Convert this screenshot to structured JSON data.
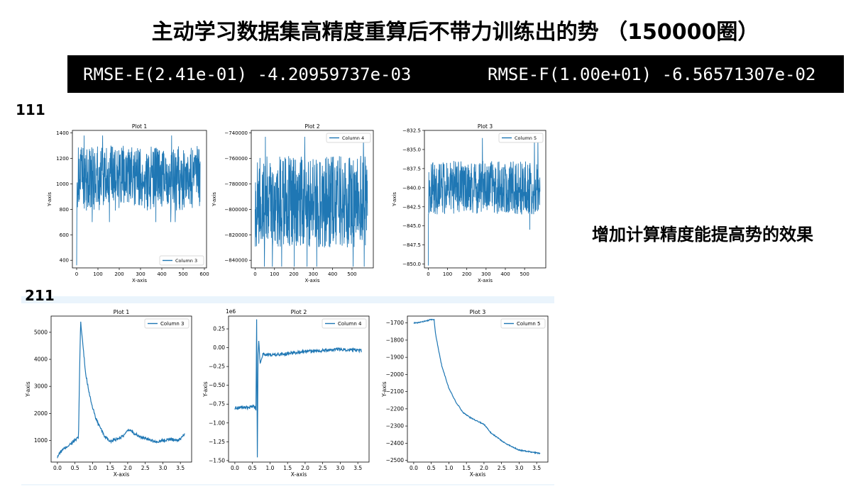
{
  "page": {
    "title": "主动学习数据集高精度重算后不带力训练出的势 （150000圈）",
    "rmse_e": "RMSE-E(2.41e-01) -4.20959737e-03",
    "rmse_f": "RMSE-F(1.00e+01) -6.56571307e-02",
    "row1_label": "111",
    "row2_label": "211",
    "side_note": "增加计算精度能提高势的效果"
  },
  "colors": {
    "line": "#1f77b4",
    "bar_bg": "#000000",
    "divider": "#eaf4fc"
  },
  "chart_data": [
    {
      "type": "line",
      "title": "Plot 1",
      "xlabel": "X-axis",
      "ylabel": "Y-axis",
      "legend": "Column 3",
      "legend_loc": "bottom-right",
      "xlim": [
        -20,
        610
      ],
      "ylim": [
        340,
        1420
      ],
      "xticks": [
        0,
        100,
        200,
        300,
        400,
        500,
        600
      ],
      "yticks": [
        400,
        600,
        800,
        1000,
        1200,
        1400
      ],
      "offset_label": "",
      "pattern": "noise",
      "n": 580,
      "start": [
        0,
        360
      ],
      "mean": 1000,
      "spread": [
        790,
        1300
      ],
      "extremes": [
        700,
        1380
      ]
    },
    {
      "type": "line",
      "title": "Plot 2",
      "xlabel": "X-axis",
      "ylabel": "Y-axis",
      "legend": "Column 4",
      "legend_loc": "top-right",
      "xlim": [
        -20,
        610
      ],
      "ylim": [
        -846000,
        -738000
      ],
      "xticks": [
        0,
        100,
        200,
        300,
        400,
        500
      ],
      "yticks": [
        -840000,
        -820000,
        -800000,
        -780000,
        -760000,
        -740000
      ],
      "offset_label": "",
      "pattern": "noise",
      "n": 580,
      "start": [
        0,
        -800000
      ],
      "mean": -795000,
      "spread": [
        -830000,
        -758000
      ],
      "extremes": [
        -845000,
        -743000
      ]
    },
    {
      "type": "line",
      "title": "Plot 3",
      "xlabel": "X-axis",
      "ylabel": "Y-axis",
      "legend": "Column 5",
      "legend_loc": "top-right",
      "xlim": [
        -20,
        610
      ],
      "ylim": [
        -850.5,
        -832.5
      ],
      "xticks": [
        0,
        100,
        200,
        300,
        400,
        500
      ],
      "yticks": [
        -850.0,
        -847.5,
        -845.0,
        -842.5,
        -840.0,
        -837.5,
        -835.0,
        -832.5
      ],
      "offset_label": "",
      "pattern": "noise",
      "n": 580,
      "start": [
        0,
        -850.2
      ],
      "mean": -840.5,
      "spread": [
        -843.5,
        -836.5
      ],
      "extremes": [
        -845.5,
        -833.5
      ]
    },
    {
      "type": "line",
      "title": "Plot 1",
      "xlabel": "X-axis",
      "ylabel": "Y-axis",
      "legend": "Column 3",
      "legend_loc": "top-right",
      "xlim": [
        -0.18,
        3.82
      ],
      "ylim": [
        200,
        5600
      ],
      "xticks": [
        0.0,
        0.5,
        1.0,
        1.5,
        2.0,
        2.5,
        3.0,
        3.5
      ],
      "yticks": [
        1000,
        2000,
        3000,
        4000,
        5000
      ],
      "offset_label": "",
      "pattern": "curve",
      "noise": 55,
      "keypoints": [
        [
          0,
          400
        ],
        [
          0.1,
          600
        ],
        [
          0.3,
          800
        ],
        [
          0.55,
          1050
        ],
        [
          0.6,
          1100
        ],
        [
          0.63,
          3500
        ],
        [
          0.66,
          5400
        ],
        [
          0.72,
          4600
        ],
        [
          0.8,
          3500
        ],
        [
          0.9,
          2800
        ],
        [
          1.0,
          2200
        ],
        [
          1.1,
          1800
        ],
        [
          1.2,
          1500
        ],
        [
          1.35,
          1150
        ],
        [
          1.5,
          950
        ],
        [
          1.7,
          1050
        ],
        [
          1.9,
          1200
        ],
        [
          2.05,
          1400
        ],
        [
          2.2,
          1250
        ],
        [
          2.4,
          1100
        ],
        [
          2.6,
          1050
        ],
        [
          2.8,
          950
        ],
        [
          3.0,
          1000
        ],
        [
          3.2,
          1050
        ],
        [
          3.4,
          1000
        ],
        [
          3.5,
          1050
        ],
        [
          3.62,
          1250
        ]
      ]
    },
    {
      "type": "line",
      "title": "Plot 2",
      "xlabel": "X-axis",
      "ylabel": "Y-axis",
      "legend": "Column 4",
      "legend_loc": "top-right",
      "xlim": [
        -0.18,
        3.82
      ],
      "ylim": [
        -1.52,
        0.42
      ],
      "xticks": [
        0.0,
        0.5,
        1.0,
        1.5,
        2.0,
        2.5,
        3.0,
        3.5
      ],
      "yticks": [
        -1.5,
        -1.25,
        -1.0,
        -0.75,
        -0.5,
        -0.25,
        0.0,
        0.25
      ],
      "offset_label": "1e6",
      "pattern": "curve",
      "noise": 0.022,
      "keypoints": [
        [
          0,
          -0.8
        ],
        [
          0.2,
          -0.79
        ],
        [
          0.4,
          -0.8
        ],
        [
          0.55,
          -0.78
        ],
        [
          0.6,
          -0.82
        ],
        [
          0.62,
          0.38
        ],
        [
          0.64,
          -1.45
        ],
        [
          0.66,
          -0.1
        ],
        [
          0.68,
          0.1
        ],
        [
          0.72,
          -0.2
        ],
        [
          0.8,
          -0.08
        ],
        [
          1.0,
          -0.1
        ],
        [
          1.5,
          -0.08
        ],
        [
          2.0,
          -0.05
        ],
        [
          2.5,
          -0.04
        ],
        [
          3.0,
          -0.02
        ],
        [
          3.6,
          -0.04
        ]
      ]
    },
    {
      "type": "line",
      "title": "Plot 3",
      "xlabel": "X-axis",
      "ylabel": "Y-axis",
      "legend": "Column 5",
      "legend_loc": "top-right",
      "xlim": [
        -0.18,
        3.82
      ],
      "ylim": [
        -2510,
        -1660
      ],
      "xticks": [
        0.0,
        0.5,
        1.0,
        1.5,
        2.0,
        2.5,
        3.0,
        3.5
      ],
      "yticks": [
        -2500,
        -2400,
        -2300,
        -2200,
        -2100,
        -2000,
        -1900,
        -1800,
        -1700
      ],
      "offset_label": "",
      "pattern": "curve",
      "noise": 3,
      "keypoints": [
        [
          0,
          -1700
        ],
        [
          0.1,
          -1700
        ],
        [
          0.3,
          -1690
        ],
        [
          0.5,
          -1680
        ],
        [
          0.58,
          -1680
        ],
        [
          0.62,
          -1760
        ],
        [
          0.7,
          -1850
        ],
        [
          0.8,
          -1950
        ],
        [
          1.0,
          -2080
        ],
        [
          1.2,
          -2160
        ],
        [
          1.4,
          -2220
        ],
        [
          1.6,
          -2250
        ],
        [
          1.8,
          -2270
        ],
        [
          2.0,
          -2290
        ],
        [
          2.2,
          -2340
        ],
        [
          2.4,
          -2370
        ],
        [
          2.6,
          -2400
        ],
        [
          2.8,
          -2420
        ],
        [
          3.0,
          -2440
        ],
        [
          3.3,
          -2450
        ],
        [
          3.6,
          -2460
        ]
      ]
    }
  ]
}
